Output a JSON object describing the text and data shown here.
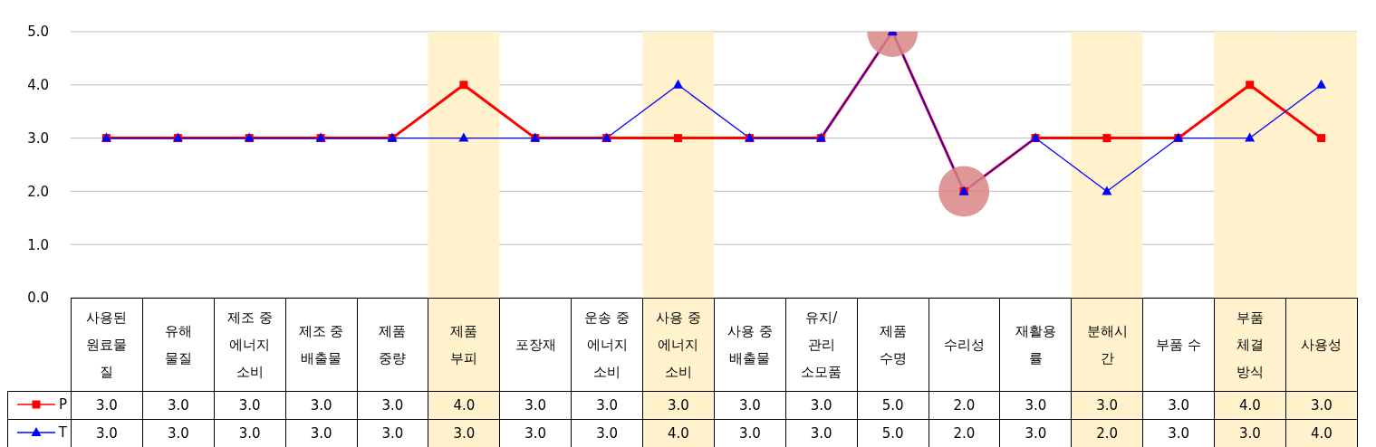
{
  "chart_data": {
    "type": "line",
    "categories": [
      "사용된 원료물질",
      "유해 물질",
      "제조 중 에너지 소비",
      "제조 중 배출물",
      "제품 중량",
      "제품 부피",
      "포장재",
      "운송 중 에너지 소비",
      "사용 중 에너지 소비",
      "사용 중 배출물",
      "유지/관리 소모품",
      "제품 수명",
      "수리성",
      "재활용률",
      "분해시간",
      "부품 수",
      "부품 체결 방식",
      "사용성"
    ],
    "series": [
      {
        "type": "scatter",
        "marker": "circle",
        "color": "#d98585",
        "values": [
          null,
          null,
          null,
          null,
          null,
          null,
          null,
          null,
          null,
          null,
          null,
          5,
          2,
          null,
          null,
          null,
          null,
          null
        ]
      },
      {
        "name": "P",
        "color": "#ff0000",
        "marker": "square",
        "values": [
          3,
          3,
          3,
          3,
          3,
          4,
          3,
          3,
          3,
          3,
          3,
          5,
          2,
          3,
          3,
          3,
          4,
          3
        ],
        "value_labels": [
          "3.0",
          "3.0",
          "3.0",
          "3.0",
          "3.0",
          "4.0",
          "3.0",
          "3.0",
          "3.0",
          "3.0",
          "3.0",
          "5.0",
          "2.0",
          "3.0",
          "3.0",
          "3.0",
          "4.0",
          "3.0"
        ]
      },
      {
        "name": "T",
        "color": "#0000ff",
        "marker": "triangle",
        "values": [
          3,
          3,
          3,
          3,
          3,
          3,
          3,
          3,
          4,
          3,
          3,
          5,
          2,
          3,
          2,
          3,
          3,
          4
        ],
        "value_labels": [
          "3.0",
          "3.0",
          "3.0",
          "3.0",
          "3.0",
          "3.0",
          "3.0",
          "3.0",
          "4.0",
          "3.0",
          "3.0",
          "5.0",
          "2.0",
          "3.0",
          "2.0",
          "3.0",
          "3.0",
          "4.0"
        ]
      }
    ],
    "ylim": [
      0,
      5
    ],
    "yticks": [
      {
        "value": 0,
        "label": "0.0"
      },
      {
        "value": 1,
        "label": "1.0"
      },
      {
        "value": 2,
        "label": "2.0"
      },
      {
        "value": 3,
        "label": "3.0"
      },
      {
        "value": 4,
        "label": "4.0"
      },
      {
        "value": 5,
        "label": "5.0"
      }
    ],
    "grid": "y",
    "legend": "bottom",
    "bands": [
      {
        "axis": "x",
        "from": "제품 부피",
        "to": "제품 부피",
        "color": "#fff2cc"
      },
      {
        "axis": "x",
        "from": "사용 중 에너지 소비",
        "to": "사용 중 에너지 소비",
        "color": "#fff2cc"
      },
      {
        "axis": "x",
        "from": "분해시간",
        "to": "분해시간",
        "color": "#fff2cc"
      },
      {
        "axis": "x",
        "from": "부품 체결 방식",
        "to": "부품 체결 방식",
        "color": "#fff2cc"
      },
      {
        "axis": "x",
        "from": "사용성",
        "to": "사용성",
        "color": "#fff2cc"
      }
    ]
  }
}
